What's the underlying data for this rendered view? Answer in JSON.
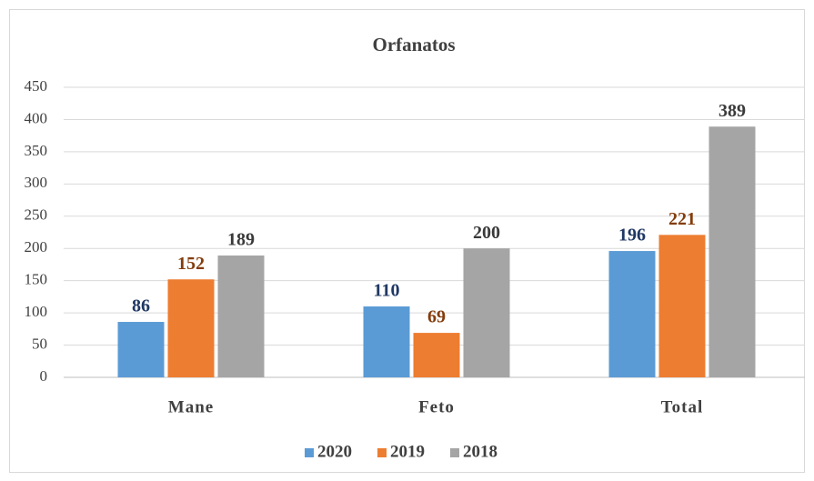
{
  "chart_data": {
    "type": "bar",
    "title": "Orfanatos",
    "categories": [
      "Mane",
      "Feto",
      "Total"
    ],
    "series": [
      {
        "name": "2020",
        "color": "#5b9bd5",
        "label_color": "#1f3864",
        "values": [
          86,
          110,
          196
        ]
      },
      {
        "name": "2019",
        "color": "#ed7d31",
        "label_color": "#843c0c",
        "values": [
          152,
          69,
          221
        ]
      },
      {
        "name": "2018",
        "color": "#a5a5a5",
        "label_color": "#3a3a3a",
        "values": [
          189,
          200,
          389
        ]
      }
    ],
    "ylim": [
      0,
      450
    ],
    "yticks": [
      0,
      50,
      100,
      150,
      200,
      250,
      300,
      350,
      400,
      450
    ],
    "grid": true,
    "legend": "bottom"
  }
}
